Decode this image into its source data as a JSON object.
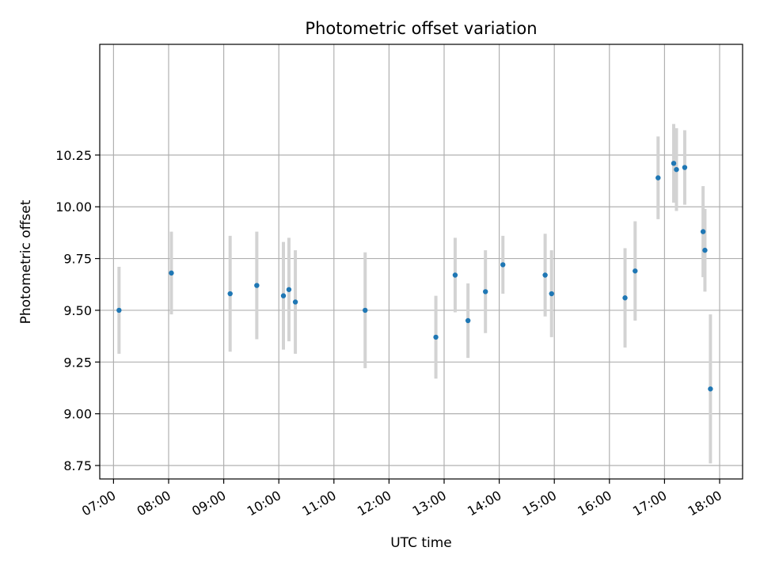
{
  "chart_data": {
    "type": "scatter",
    "title": "Photometric offset variation",
    "xlabel": "UTC time",
    "ylabel": "Photometric offset",
    "x_axis_type": "time",
    "xlim": [
      "06:45",
      "18:25"
    ],
    "ylim": [
      8.685,
      10.785
    ],
    "grid": true,
    "legend": "none",
    "x_ticks": [
      "07:00",
      "08:00",
      "09:00",
      "10:00",
      "11:00",
      "12:00",
      "13:00",
      "14:00",
      "15:00",
      "16:00",
      "17:00",
      "18:00"
    ],
    "y_ticks": [
      8.75,
      9.0,
      9.25,
      9.5,
      9.75,
      10.0,
      10.25
    ],
    "y_tick_labels": [
      "8.75",
      "9.00",
      "9.25",
      "9.50",
      "9.75",
      "10.00",
      "10.25"
    ],
    "marker_color": "#1f77b4",
    "errorbar_color": "#d3d3d3",
    "points": [
      {
        "time": "07:06",
        "y": 9.5,
        "yerr": 0.21
      },
      {
        "time": "08:03",
        "y": 9.68,
        "yerr": 0.2
      },
      {
        "time": "09:07",
        "y": 9.58,
        "yerr": 0.28
      },
      {
        "time": "09:36",
        "y": 9.62,
        "yerr": 0.26
      },
      {
        "time": "10:05",
        "y": 9.57,
        "yerr": 0.26
      },
      {
        "time": "10:11",
        "y": 9.6,
        "yerr": 0.25
      },
      {
        "time": "10:18",
        "y": 9.54,
        "yerr": 0.25
      },
      {
        "time": "11:34",
        "y": 9.5,
        "yerr": 0.28
      },
      {
        "time": "12:51",
        "y": 9.37,
        "yerr": 0.2
      },
      {
        "time": "13:12",
        "y": 9.67,
        "yerr": 0.18
      },
      {
        "time": "13:26",
        "y": 9.45,
        "yerr": 0.18
      },
      {
        "time": "13:45",
        "y": 9.59,
        "yerr": 0.2
      },
      {
        "time": "14:04",
        "y": 9.72,
        "yerr": 0.14
      },
      {
        "time": "14:50",
        "y": 9.67,
        "yerr": 0.2
      },
      {
        "time": "14:57",
        "y": 9.58,
        "yerr": 0.21
      },
      {
        "time": "16:17",
        "y": 9.56,
        "yerr": 0.24
      },
      {
        "time": "16:28",
        "y": 9.69,
        "yerr": 0.24
      },
      {
        "time": "16:53",
        "y": 10.14,
        "yerr": 0.2
      },
      {
        "time": "17:10",
        "y": 10.21,
        "yerr": 0.19
      },
      {
        "time": "17:13",
        "y": 10.18,
        "yerr": 0.2
      },
      {
        "time": "17:22",
        "y": 10.19,
        "yerr": 0.18
      },
      {
        "time": "17:42",
        "y": 9.88,
        "yerr": 0.22
      },
      {
        "time": "17:44",
        "y": 9.79,
        "yerr": 0.2
      },
      {
        "time": "17:50",
        "y": 9.12,
        "yerr": 0.36
      }
    ]
  }
}
